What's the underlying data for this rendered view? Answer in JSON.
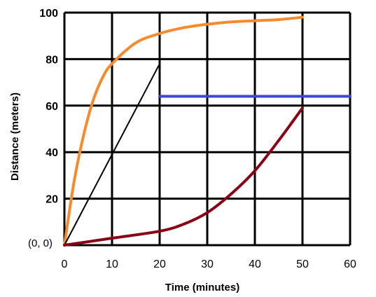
{
  "chart_data": {
    "type": "line",
    "title": "",
    "xlabel": "Time (minutes)",
    "ylabel": "Distance (meters)",
    "xlim": [
      0,
      60
    ],
    "ylim": [
      0,
      100
    ],
    "x_ticks": [
      0,
      10,
      20,
      30,
      40,
      50,
      60
    ],
    "y_ticks": [
      20,
      40,
      60,
      80,
      100
    ],
    "origin_label": "(0, 0)",
    "grid": true,
    "series": [
      {
        "color": "#F58A2E",
        "x": [
          0,
          2,
          4,
          6,
          8,
          10,
          15,
          20,
          25,
          30,
          35,
          40,
          45,
          50
        ],
        "y": [
          0,
          27,
          47,
          62,
          72,
          78,
          87,
          91,
          93.5,
          95,
          96,
          96.5,
          97,
          98
        ]
      },
      {
        "color": "#000000",
        "x": [
          0,
          20
        ],
        "y": [
          0,
          78
        ]
      },
      {
        "color": "#3F48CC",
        "x": [
          20,
          60
        ],
        "y": [
          64,
          64
        ]
      },
      {
        "color": "#880015",
        "x": [
          0,
          10,
          20,
          25,
          30,
          35,
          40,
          45,
          50
        ],
        "y": [
          0,
          3,
          6,
          9,
          14,
          22,
          32,
          45,
          59
        ]
      }
    ]
  }
}
